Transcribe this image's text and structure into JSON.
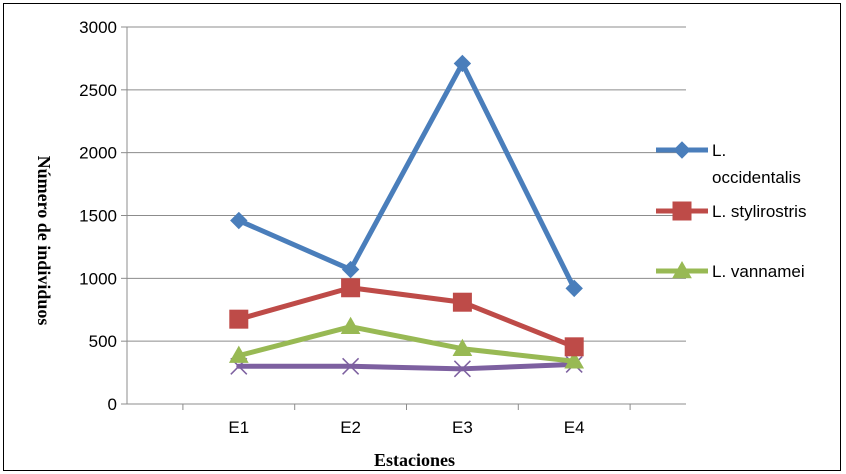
{
  "chart_data": {
    "type": "line",
    "categories": [
      "E1",
      "E2",
      "E3",
      "E4"
    ],
    "xlabel": "Estaciones",
    "ylabel": "Número de individuos",
    "ylim": [
      0,
      3000
    ],
    "yticks": [
      0,
      500,
      1000,
      1500,
      2000,
      2500,
      3000
    ],
    "grid": true,
    "legend_position": "right",
    "series": [
      {
        "name": "L. occidentalis",
        "legend_lines": [
          "L.",
          "occidentalis"
        ],
        "values": [
          1460,
          1070,
          2710,
          920
        ],
        "color": "#4a7ebb",
        "marker": "diamond"
      },
      {
        "name": "L. stylirostris",
        "legend_lines": [
          "L. stylirostris"
        ],
        "values": [
          675,
          925,
          810,
          455
        ],
        "color": "#be4b48",
        "marker": "square"
      },
      {
        "name": "L. vannamei",
        "legend_lines": [
          "L. vannamei"
        ],
        "values": [
          385,
          615,
          440,
          340
        ],
        "color": "#98b954",
        "marker": "triangle"
      },
      {
        "values": [
          300,
          300,
          280,
          315
        ],
        "color": "#7d60a0",
        "marker": "x"
      }
    ]
  }
}
